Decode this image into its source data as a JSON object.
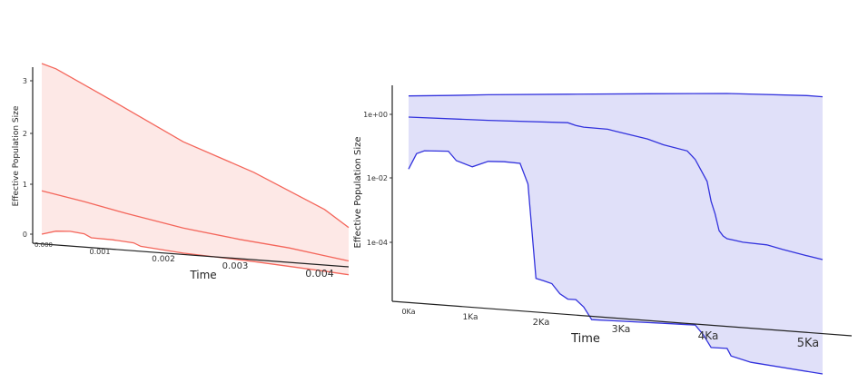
{
  "chart_data": [
    {
      "type": "area",
      "title": "",
      "xlabel": "Time",
      "ylabel": "Effective Population Size",
      "x_ticks": [
        "0.000",
        "0.001",
        "0.002",
        "0.003",
        "0.004"
      ],
      "y_ticks": [
        "0",
        "1",
        "2",
        "3"
      ],
      "xlim": [
        0.0,
        0.00434
      ],
      "ylim": [
        0,
        3.3
      ],
      "grid": false,
      "colors": {
        "line": "#f4665b",
        "fill": "#fde8e6"
      },
      "series": [
        {
          "name": "",
          "x": [
            0.0,
            0.0002,
            0.001,
            0.002,
            0.003,
            0.004,
            0.00434
          ],
          "values": [
            3.15,
            3.07,
            2.55,
            1.9,
            1.45,
            0.9,
            0.62
          ]
        },
        {
          "name": "",
          "x": [
            0.0,
            0.0006,
            0.0012,
            0.002,
            0.0028,
            0.0035,
            0.004,
            0.00434
          ],
          "values": [
            0.8,
            0.67,
            0.52,
            0.35,
            0.24,
            0.17,
            0.09,
            0.04
          ]
        },
        {
          "name": "",
          "x": [
            0.0,
            0.0002,
            0.0004,
            0.0006,
            0.0007,
            0.001,
            0.0013,
            0.0014,
            0.002,
            0.003,
            0.004,
            0.00434
          ],
          "values": [
            0.0,
            0.08,
            0.1,
            0.08,
            0.02,
            0.02,
            0.0,
            -0.05,
            -0.1,
            -0.13,
            -0.18,
            -0.2
          ]
        }
      ]
    },
    {
      "type": "area",
      "title": "",
      "xlabel": "Time",
      "ylabel": "Effective Population Size",
      "x_ticks": [
        "0Ka",
        "1Ka",
        "2Ka",
        "3Ka",
        "4Ka",
        "5Ka"
      ],
      "y_ticks": [
        "1e+00",
        "1e-02",
        "1e-04"
      ],
      "xlim": [
        0,
        5.2
      ],
      "ylim_log10": [
        -5.4,
        0.5
      ],
      "y_scale": "log",
      "grid": false,
      "colors": {
        "line": "#3333dd",
        "fill": "#e0e0f9"
      },
      "series": [
        {
          "name": "",
          "x": [
            0,
            0.5,
            1,
            2,
            3,
            4,
            5,
            5.2
          ],
          "values": [
            2.95,
            3.1,
            3.3,
            3.55,
            3.8,
            4.0,
            3.7,
            3.5
          ]
        },
        {
          "name": "",
          "x": [
            0,
            1,
            2,
            2.1,
            2.2,
            2.5,
            2.6,
            3.0,
            3.2,
            3.5,
            3.6,
            3.75,
            3.8,
            3.85,
            3.9,
            3.95,
            4.0,
            4.1,
            4.2,
            4.5,
            4.7,
            5.0,
            5.2
          ],
          "values": [
            0.85,
            0.75,
            0.7,
            0.6,
            0.55,
            0.5,
            0.45,
            0.3,
            0.22,
            0.16,
            0.1,
            0.03,
            0.01,
            0.005,
            0.002,
            0.0015,
            0.0013,
            0.0012,
            0.0011,
            0.001,
            0.0008,
            0.0006,
            0.0005
          ]
        },
        {
          "name": "",
          "x": [
            0,
            0.1,
            0.2,
            0.5,
            0.6,
            0.8,
            1,
            1.2,
            1.4,
            1.5,
            1.6,
            1.7,
            1.8,
            1.9,
            2.0,
            2.1,
            2.2,
            2.3,
            2.5,
            2.7,
            3.0,
            3.3,
            3.5,
            3.6,
            3.7,
            3.8,
            3.9,
            4.0,
            4.05,
            4.3,
            5.2
          ],
          "values": [
            0.04,
            0.1,
            0.12,
            0.12,
            0.07,
            0.05,
            0.07,
            0.07,
            0.065,
            0.02,
            9e-05,
            8e-05,
            7e-05,
            4e-05,
            3e-05,
            3e-05,
            2e-05,
            1e-05,
            1e-05,
            1e-05,
            1e-05,
            1e-05,
            1e-05,
            1e-05,
            6e-06,
            3e-06,
            3e-06,
            3e-06,
            2e-06,
            1.5e-06,
            1e-06
          ]
        }
      ]
    }
  ]
}
